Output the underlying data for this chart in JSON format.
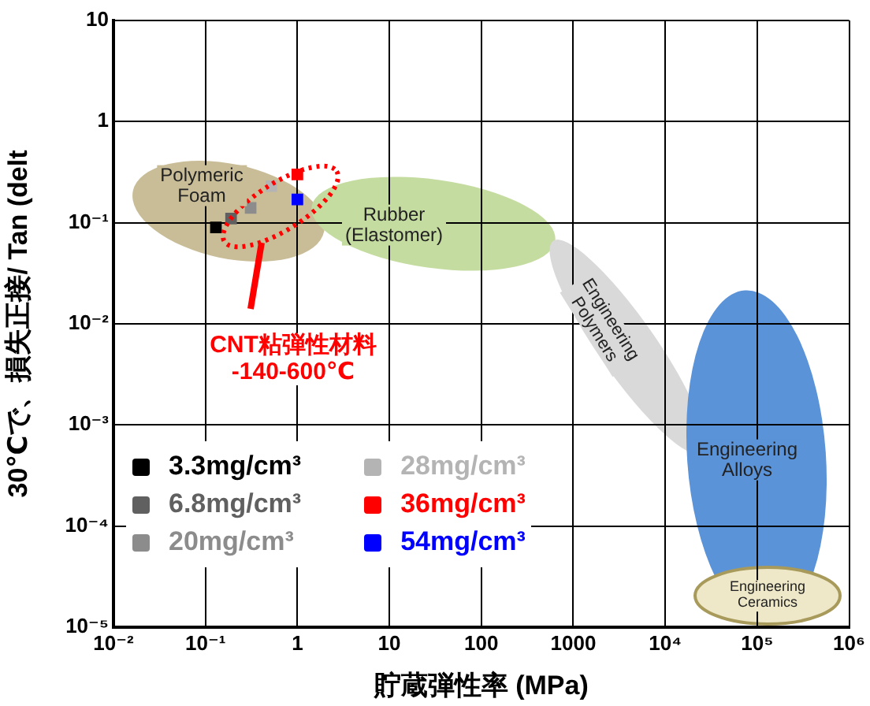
{
  "chart_data": {
    "type": "scatter",
    "xlabel": "貯蔵弾性率 (MPa)",
    "ylabel": "30℃で、損失正接/ Tan (delt",
    "log": "xy",
    "grid": true,
    "legend": "bottom left",
    "marker": "square",
    "xlim": [
      0.01,
      1000000
    ],
    "ylim": [
      1e-05,
      10
    ],
    "xticks": [
      {
        "value": 0.01,
        "label": "10⁻²"
      },
      {
        "value": 0.1,
        "label": "10⁻¹"
      },
      1,
      10,
      100,
      1000,
      {
        "value": 10000,
        "label": "10⁴"
      },
      {
        "value": 100000,
        "label": "10⁵"
      },
      {
        "value": 1000000,
        "label": "10⁶"
      }
    ],
    "yticks": [
      {
        "value": 1e-05,
        "label": "10⁻⁵"
      },
      {
        "value": 0.0001,
        "label": "10⁻⁴"
      },
      {
        "value": 0.001,
        "label": "10⁻³"
      },
      {
        "value": 0.01,
        "label": "10⁻²"
      },
      {
        "value": 0.1,
        "label": "10⁻¹"
      },
      1,
      10
    ],
    "series": [
      {
        "name": "3.3mg/cm³",
        "color": "#000000",
        "x": [
          0.13
        ],
        "values": [
          0.09
        ]
      },
      {
        "name": "6.8mg/cm³",
        "color": "#606060",
        "x": [
          0.19
        ],
        "values": [
          0.11
        ]
      },
      {
        "name": "20mg/cm³",
        "color": "#8c8c8c",
        "x": [
          0.31
        ],
        "values": [
          0.14
        ]
      },
      {
        "name": "28mg/cm³",
        "color": "#b4b4b4",
        "x": [
          0.52
        ],
        "values": [
          0.23
        ]
      },
      {
        "name": "36mg/cm³",
        "color": "#ff0000",
        "x": [
          1
        ],
        "values": [
          0.3
        ]
      },
      {
        "name": "54mg/cm³",
        "color": "#0000ff",
        "x": [
          1
        ],
        "values": [
          0.17
        ]
      }
    ],
    "annotations": [
      "Polymeric\nFoam",
      "Rubber\n(Elastomer)",
      "Engineering\nPolymers",
      "Engineering\nAlloys",
      "Engineering\nCeramics",
      "CNT粘弾性材料\n-140-600℃"
    ]
  }
}
